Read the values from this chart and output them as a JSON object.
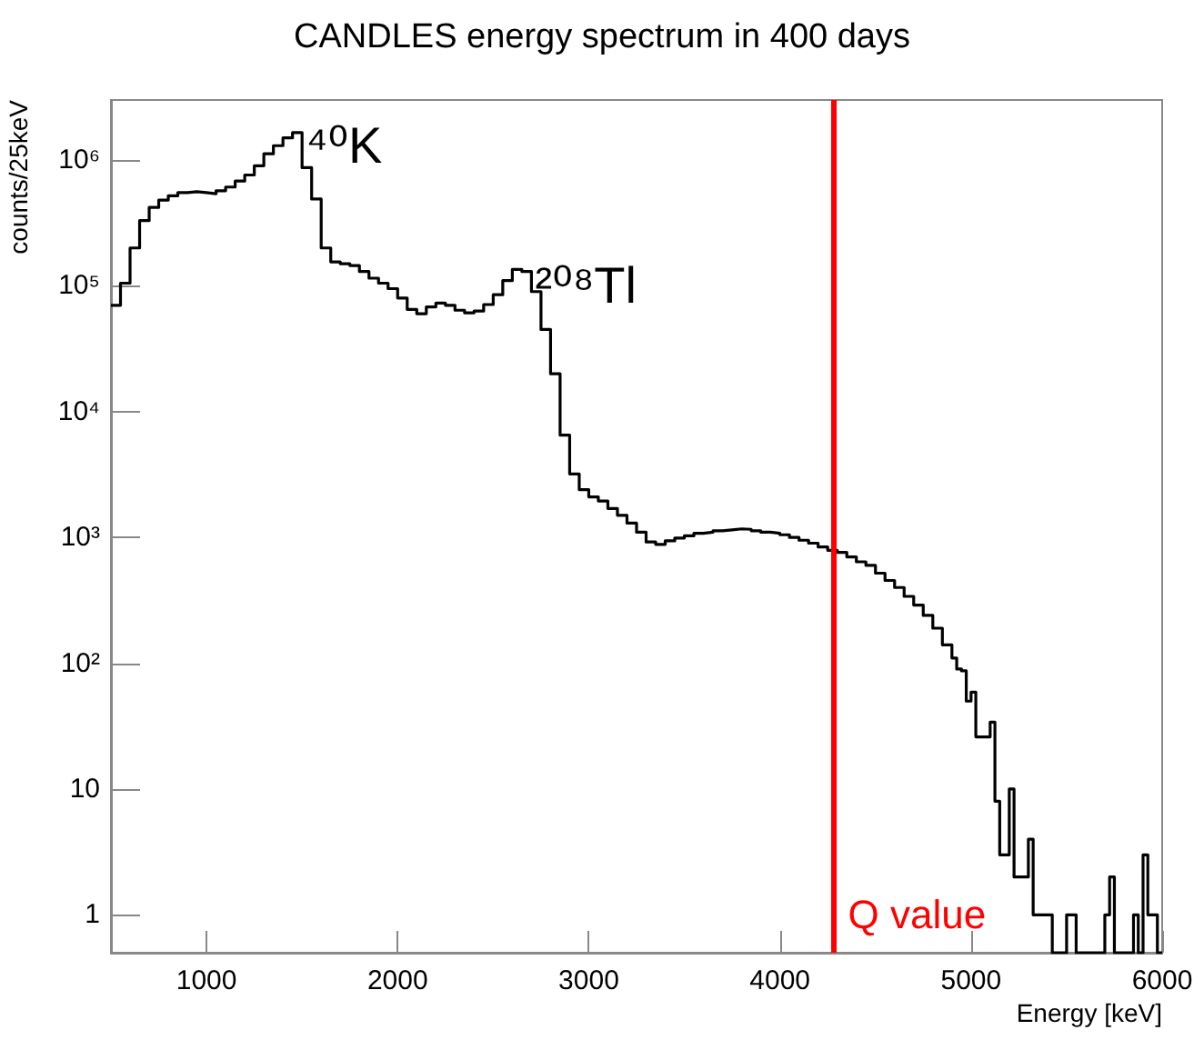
{
  "chart_data": {
    "type": "histogram",
    "title": "CANDLES energy spectrum in 400 days",
    "xlabel": "Energy [keV]",
    "ylabel": "counts/25keV",
    "bins": [
      500,
      550,
      600,
      650,
      700,
      750,
      800,
      850,
      900,
      950,
      1000,
      1050,
      1100,
      1150,
      1200,
      1250,
      1300,
      1350,
      1400,
      1450,
      1500,
      1550,
      1600,
      1650,
      1700,
      1750,
      1800,
      1850,
      1900,
      1950,
      2000,
      2050,
      2100,
      2150,
      2200,
      2250,
      2300,
      2350,
      2400,
      2450,
      2500,
      2550,
      2600,
      2650,
      2700,
      2750,
      2800,
      2850,
      2900,
      2950,
      3000,
      3050,
      3100,
      3150,
      3200,
      3250,
      3300,
      3350,
      3400,
      3450,
      3500,
      3550,
      3600,
      3650,
      3700,
      3750,
      3800,
      3850,
      3900,
      3950,
      4000,
      4050,
      4100,
      4150,
      4200,
      4250,
      4300,
      4350,
      4400,
      4450,
      4500,
      4550,
      4600,
      4650,
      4700,
      4750,
      4800,
      4850,
      4900,
      4925,
      4950,
      4975,
      5000,
      5025,
      5050,
      5075,
      5100,
      5125,
      5150,
      5175,
      5200,
      5225,
      5250,
      5275,
      5300,
      5325,
      5350,
      5375,
      5400,
      5425,
      5450,
      5475,
      5500,
      5525,
      5550,
      5575,
      5600,
      5625,
      5650,
      5675,
      5700,
      5725,
      5750,
      5775,
      5800,
      5825,
      5850,
      5875,
      5900,
      5925,
      5950,
      5975,
      6000
    ],
    "values": [
      70000,
      105000,
      200000,
      330000,
      420000,
      480000,
      520000,
      550000,
      560000,
      550000,
      540000,
      570000,
      610000,
      680000,
      760000,
      900000,
      1120000,
      1300000,
      1500000,
      1650000,
      870000,
      490000,
      200000,
      155000,
      150000,
      145000,
      130000,
      115000,
      105000,
      95000,
      80000,
      65000,
      60000,
      68000,
      73000,
      70000,
      64000,
      61000,
      63000,
      71000,
      85000,
      110000,
      135000,
      130000,
      90000,
      45000,
      20000,
      6500,
      3200,
      2400,
      2100,
      1950,
      1700,
      1500,
      1300,
      1100,
      920,
      880,
      940,
      990,
      1030,
      1080,
      1100,
      1130,
      1150,
      1170,
      1160,
      1130,
      1100,
      1080,
      1050,
      1000,
      950,
      900,
      840,
      790,
      760,
      700,
      640,
      600,
      520,
      455,
      400,
      340,
      290,
      240,
      190,
      140,
      110,
      90,
      87,
      50,
      59,
      26,
      26,
      26,
      34,
      8,
      3,
      3,
      10,
      2,
      2,
      2,
      4,
      1,
      1,
      1,
      1,
      null,
      null,
      null,
      1,
      1,
      null,
      null,
      null,
      null,
      null,
      null,
      1,
      2,
      null,
      null,
      null,
      null,
      1,
      null,
      3,
      1,
      1,
      null
    ],
    "color": "#000000",
    "xlim": [
      500,
      6000
    ],
    "xticks": [
      1000,
      2000,
      3000,
      4000,
      5000,
      6000
    ],
    "ylim": [
      0.5,
      3000000
    ],
    "yticks": [
      1,
      10,
      {
        "value": 100,
        "label": "10²"
      },
      {
        "value": 1000,
        "label": "10³"
      },
      {
        "value": 10000,
        "label": "10⁴"
      },
      {
        "value": 100000,
        "label": "10⁵"
      },
      {
        "value": 1000000,
        "label": "10⁶"
      }
    ],
    "log": "y",
    "ref_lines": [
      {
        "axis": "x",
        "value": 4280,
        "label": "Q value",
        "color": "#ff0000"
      }
    ],
    "annotations": [
      {
        "text": "⁴⁰K",
        "x": 1520,
        "y": 1300000
      },
      {
        "text": "²⁰⁸Tl",
        "x": 2720,
        "y": 100000
      }
    ]
  }
}
